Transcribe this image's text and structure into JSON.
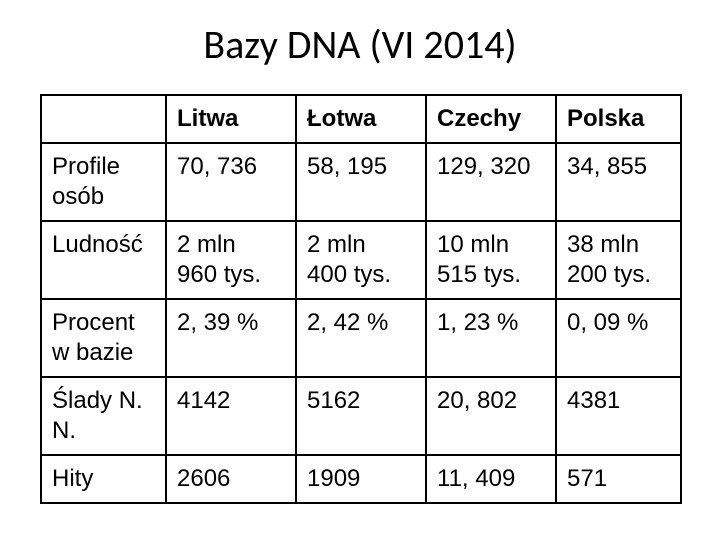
{
  "title": "Bazy DNA (VI 2014)",
  "table": {
    "columns": [
      "",
      "Litwa",
      "Łotwa",
      "Czechy",
      "Polska"
    ],
    "rows": [
      {
        "label": "Profile osób",
        "cells": [
          "70, 736",
          "58, 195",
          "129, 320",
          "34, 855"
        ]
      },
      {
        "label": "Ludność",
        "cells": [
          "2 mln\n960 tys.",
          "2 mln\n400 tys.",
          "10 mln\n515 tys.",
          "38 mln\n200 tys."
        ]
      },
      {
        "label": "Procent w bazie",
        "cells": [
          "2, 39 %",
          "2, 42 %",
          "1, 23 %",
          "0, 09 %"
        ]
      },
      {
        "label": "Ślady N. N.",
        "cells": [
          "4142",
          "5162",
          "20, 802",
          "4381"
        ]
      },
      {
        "label": "Hity",
        "cells": [
          "2606",
          "1909",
          "11, 409",
          "571"
        ]
      }
    ],
    "border_color": "#000000",
    "title_fontsize": 40,
    "cell_fontsize": 24,
    "background_color": "#ffffff"
  }
}
